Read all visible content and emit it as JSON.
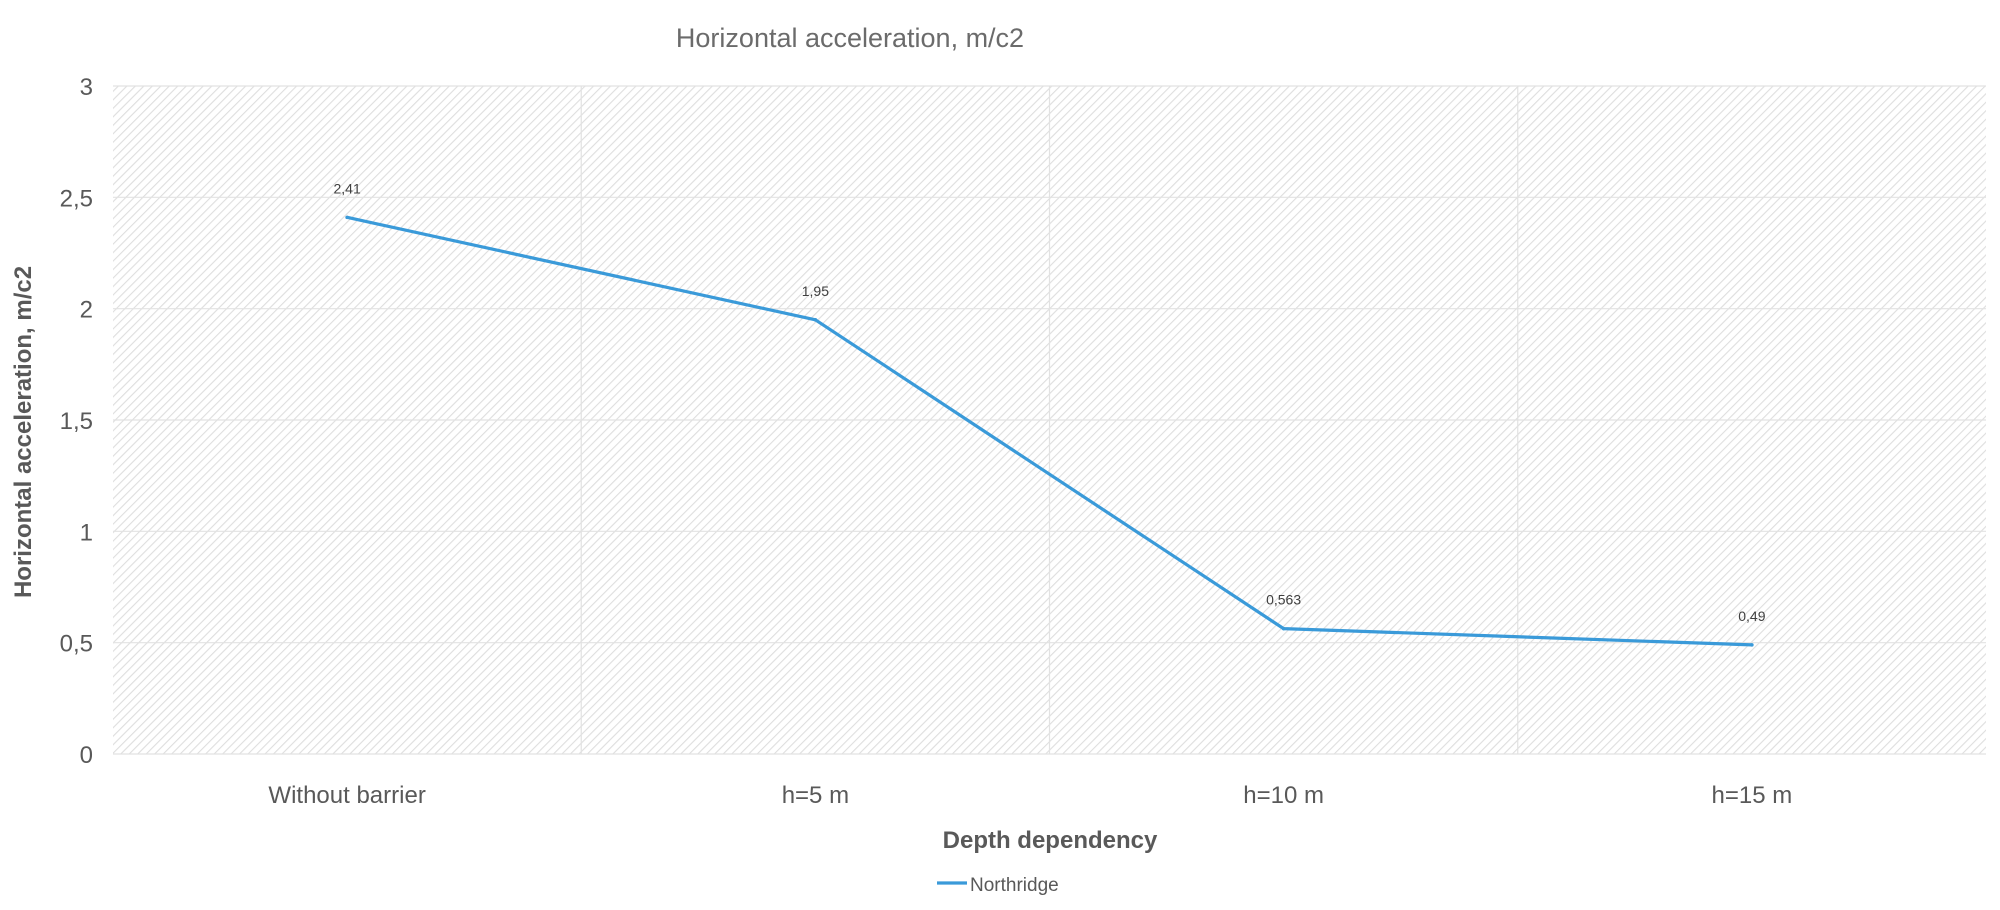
{
  "chart_data": {
    "type": "line",
    "title": "Horizontal acceleration, m/c2",
    "xlabel": "Depth dependency",
    "ylabel": "Horizontal acceleration, m/c2",
    "categories": [
      "Without barrier",
      "h=5 m",
      "h=10 m",
      "h=15 m"
    ],
    "series": [
      {
        "name": "Northridge",
        "values": [
          2.41,
          1.95,
          0.563,
          0.49
        ],
        "labels": [
          "2,41",
          "1,95",
          "0,563",
          "0,49"
        ],
        "color": "#3a9ad9"
      }
    ],
    "ylim": [
      0,
      3
    ],
    "yticks": [
      "0",
      "0,5",
      "1",
      "1,5",
      "2",
      "2,5",
      "3"
    ],
    "ytick_values": [
      0,
      0.5,
      1,
      1.5,
      2,
      2.5,
      3
    ],
    "grid": true,
    "legend": "bottom",
    "plot_background": "hatched-grey"
  }
}
